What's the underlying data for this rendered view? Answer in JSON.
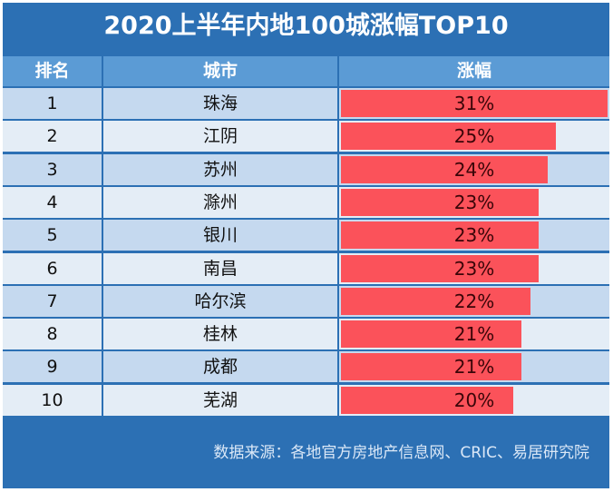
{
  "title": "2020上半年内地100城涨幅TOP10",
  "headers": [
    "排名",
    "城市",
    "涨幅"
  ],
  "source": "数据来源：各地官方房地产信息网、CRIC、易居研究院",
  "colors": {
    "title_bg": "#2c70b4",
    "header_bg": "#5b9bd5",
    "row_dark": "#c5d9ef",
    "row_light": "#e4edf6",
    "bar": "#fb525a"
  },
  "chart_data": {
    "type": "table",
    "title": "2020上半年内地100城涨幅TOP10",
    "columns": [
      "排名",
      "城市",
      "涨幅"
    ],
    "rows": [
      {
        "rank": "1",
        "city": "珠海",
        "value": 31,
        "label": "31%"
      },
      {
        "rank": "2",
        "city": "江阴",
        "value": 25,
        "label": "25%"
      },
      {
        "rank": "3",
        "city": "苏州",
        "value": 24,
        "label": "24%"
      },
      {
        "rank": "4",
        "city": "滁州",
        "value": 23,
        "label": "23%"
      },
      {
        "rank": "5",
        "city": "银川",
        "value": 23,
        "label": "23%"
      },
      {
        "rank": "6",
        "city": "南昌",
        "value": 23,
        "label": "23%"
      },
      {
        "rank": "7",
        "city": "哈尔滨",
        "value": 22,
        "label": "22%"
      },
      {
        "rank": "8",
        "city": "桂林",
        "value": 21,
        "label": "21%"
      },
      {
        "rank": "9",
        "city": "成都",
        "value": 21,
        "label": "21%"
      },
      {
        "rank": "10",
        "city": "芜湖",
        "value": 20,
        "label": "20%"
      }
    ]
  }
}
